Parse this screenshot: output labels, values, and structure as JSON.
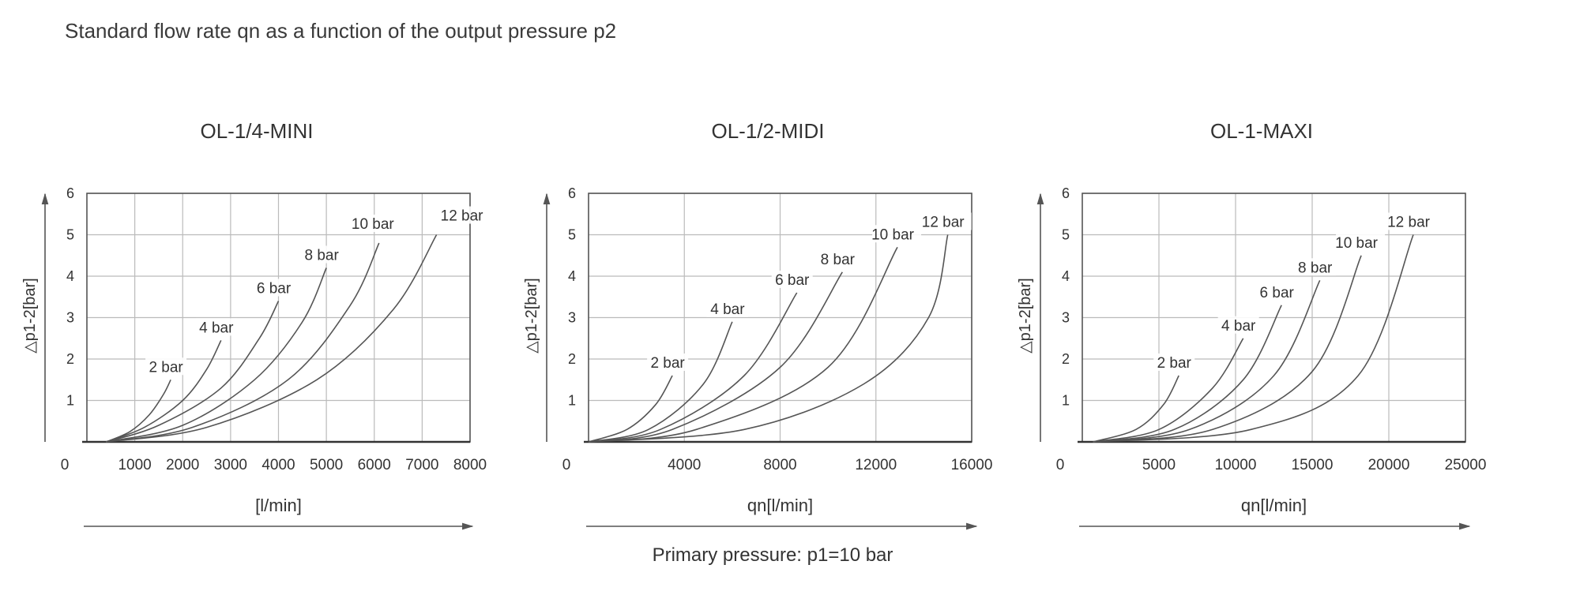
{
  "page": {
    "title": "Standard flow rate qn as a function of the output pressure p2",
    "footnote": "Primary pressure: p1=10 bar"
  },
  "colors": {
    "line": "#555555",
    "grid": "#bbbbbb",
    "axis": "#555555",
    "text": "#333333"
  },
  "chart_data": [
    {
      "type": "line",
      "title": "OL-1/4-MINI",
      "ylabel": "△p1-2[bar]",
      "xlabel": "[l/min]",
      "xlim": [
        0,
        8000
      ],
      "ylim": [
        0,
        6
      ],
      "x_ticks": [
        0,
        1000,
        2000,
        3000,
        4000,
        5000,
        6000,
        7000,
        8000
      ],
      "y_ticks": [
        1,
        2,
        3,
        4,
        5,
        6
      ],
      "grid": true,
      "series": [
        {
          "name": "2 bar",
          "x": [
            400,
            900,
            1300,
            1600,
            1750
          ],
          "y": [
            0,
            0.25,
            0.65,
            1.15,
            1.5
          ]
        },
        {
          "name": "4 bar",
          "x": [
            400,
            1200,
            2000,
            2500,
            2800
          ],
          "y": [
            0,
            0.35,
            1.0,
            1.75,
            2.45
          ]
        },
        {
          "name": "6 bar",
          "x": [
            400,
            1500,
            2800,
            3600,
            4000
          ],
          "y": [
            0,
            0.4,
            1.3,
            2.5,
            3.4
          ]
        },
        {
          "name": "8 bar",
          "x": [
            400,
            2000,
            3500,
            4500,
            5000
          ],
          "y": [
            0,
            0.4,
            1.5,
            2.9,
            4.2
          ]
        },
        {
          "name": "10 bar",
          "x": [
            400,
            2200,
            4200,
            5500,
            6100
          ],
          "y": [
            0,
            0.35,
            1.5,
            3.3,
            4.8
          ]
        },
        {
          "name": "12 bar",
          "x": [
            400,
            2500,
            4800,
            6400,
            7300
          ],
          "y": [
            0,
            0.35,
            1.5,
            3.2,
            5.0
          ]
        }
      ]
    },
    {
      "type": "line",
      "title": "OL-1/2-MIDI",
      "ylabel": "△p1-2[bar]",
      "xlabel": "qn[l/min]",
      "xlim": [
        0,
        16000
      ],
      "ylim": [
        0,
        6
      ],
      "x_ticks": [
        0,
        4000,
        8000,
        12000,
        16000
      ],
      "y_ticks": [
        1,
        2,
        3,
        4,
        5,
        6
      ],
      "grid": true,
      "series": [
        {
          "name": "2 bar",
          "x": [
            0,
            1600,
            2800,
            3500
          ],
          "y": [
            0,
            0.3,
            0.9,
            1.6
          ]
        },
        {
          "name": "4 bar",
          "x": [
            0,
            2500,
            4800,
            6000
          ],
          "y": [
            0,
            0.3,
            1.4,
            2.9
          ]
        },
        {
          "name": "6 bar",
          "x": [
            0,
            3000,
            6500,
            8700
          ],
          "y": [
            0,
            0.3,
            1.6,
            3.6
          ]
        },
        {
          "name": "8 bar",
          "x": [
            0,
            3500,
            8000,
            10600
          ],
          "y": [
            0,
            0.3,
            1.8,
            4.1
          ]
        },
        {
          "name": "10 bar",
          "x": [
            0,
            4500,
            10000,
            12900
          ],
          "y": [
            0,
            0.3,
            1.8,
            4.7
          ]
        },
        {
          "name": "12 bar",
          "x": [
            0,
            6500,
            11500,
            14200,
            15000
          ],
          "y": [
            0,
            0.3,
            1.4,
            3.0,
            5.0
          ]
        }
      ]
    },
    {
      "type": "line",
      "title": "OL-1-MAXI",
      "ylabel": "△p1-2[bar]",
      "xlabel": "qn[l/min]",
      "xlim": [
        0,
        25000
      ],
      "ylim": [
        0,
        6
      ],
      "x_ticks": [
        0,
        5000,
        10000,
        15000,
        20000,
        25000
      ],
      "y_ticks": [
        1,
        2,
        3,
        4,
        5,
        6
      ],
      "grid": true,
      "series": [
        {
          "name": "2 bar",
          "x": [
            700,
            3500,
            5300,
            6300
          ],
          "y": [
            0,
            0.3,
            0.9,
            1.6
          ]
        },
        {
          "name": "4 bar",
          "x": [
            700,
            5000,
            8500,
            10500
          ],
          "y": [
            0,
            0.3,
            1.3,
            2.5
          ]
        },
        {
          "name": "6 bar",
          "x": [
            700,
            6000,
            10500,
            13000
          ],
          "y": [
            0,
            0.3,
            1.5,
            3.3
          ]
        },
        {
          "name": "8 bar",
          "x": [
            700,
            7000,
            12500,
            15500
          ],
          "y": [
            0,
            0.3,
            1.6,
            3.9
          ]
        },
        {
          "name": "10 bar",
          "x": [
            700,
            8500,
            15000,
            18200
          ],
          "y": [
            0,
            0.3,
            1.7,
            4.5
          ]
        },
        {
          "name": "12 bar",
          "x": [
            700,
            11000,
            18000,
            21600
          ],
          "y": [
            0,
            0.3,
            1.6,
            5.0
          ]
        }
      ]
    }
  ]
}
